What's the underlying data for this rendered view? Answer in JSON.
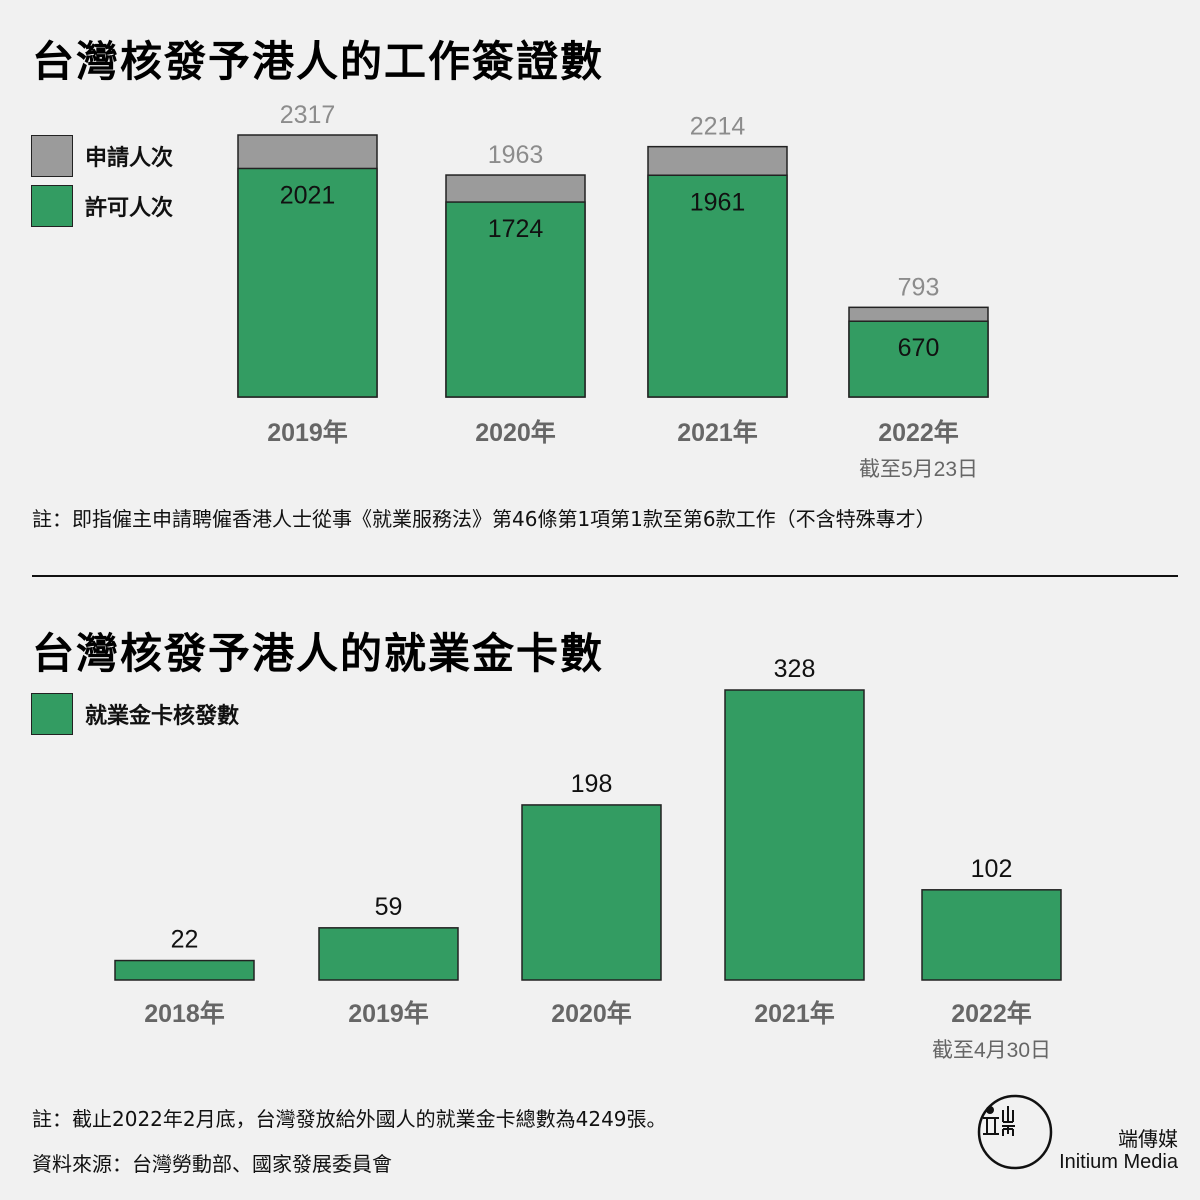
{
  "colors": {
    "applied": "#9b9b9b",
    "approved": "#339c62",
    "axis_label": "#666666",
    "value_gray": "#8c8c8c"
  },
  "chart_data": [
    {
      "type": "bar",
      "title": "台灣核發予港人的工作簽證數",
      "categories": [
        "2019年",
        "2020年",
        "2021年",
        "2022年"
      ],
      "category_notes": [
        "",
        "",
        "",
        "截至5月23日"
      ],
      "series": [
        {
          "name": "申請人次",
          "values": [
            2317,
            1963,
            2214,
            793
          ]
        },
        {
          "name": "許可人次",
          "values": [
            2021,
            1724,
            1961,
            670
          ]
        }
      ],
      "legend": "top-left",
      "note": "註：即指僱主申請聘僱香港人士從事《就業服務法》第46條第1項第1款至第6款工作（不含特殊專才）"
    },
    {
      "type": "bar",
      "title": "台灣核發予港人的就業金卡數",
      "categories": [
        "2018年",
        "2019年",
        "2020年",
        "2021年",
        "2022年"
      ],
      "category_notes": [
        "",
        "",
        "",
        "",
        "截至4月30日"
      ],
      "series": [
        {
          "name": "就業金卡核發數",
          "values": [
            22,
            59,
            198,
            328,
            102
          ]
        }
      ],
      "legend": "top-left"
    }
  ],
  "footer": {
    "note": "註：截止2022年2月底，台灣發放給外國人的就業金卡總數為4249張。",
    "source": "資料來源：台灣勞動部、國家發展委員會",
    "brand_cn": "端傳媒",
    "brand_en": "Initium Media"
  }
}
